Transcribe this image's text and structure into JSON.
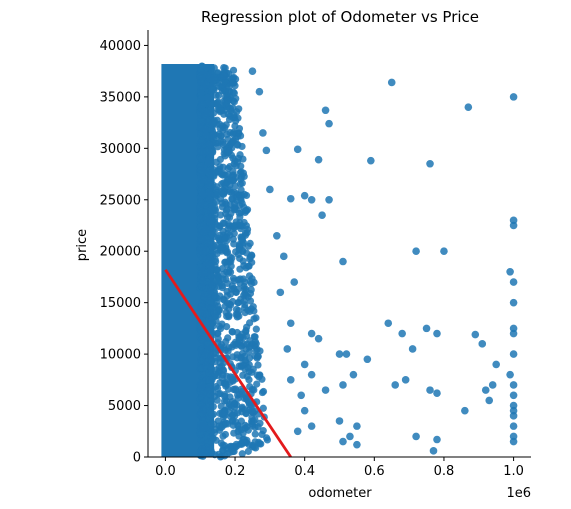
{
  "chart_data": {
    "type": "scatter",
    "title": "Regression plot of Odometer vs Price",
    "xlabel": "odometer",
    "ylabel": "price",
    "x_offset_label": "1e6",
    "xlim": [
      -0.05,
      1.05
    ],
    "ylim": [
      0,
      41500
    ],
    "xticks": [
      0.0,
      0.2,
      0.4,
      0.6,
      0.8,
      1.0
    ],
    "xtick_labels": [
      "0.0",
      "0.2",
      "0.4",
      "0.6",
      "0.8",
      "1.0"
    ],
    "yticks": [
      0,
      5000,
      10000,
      15000,
      20000,
      25000,
      30000,
      35000,
      40000
    ],
    "ytick_labels": [
      "0",
      "5000",
      "10000",
      "15000",
      "20000",
      "25000",
      "30000",
      "35000",
      "40000"
    ],
    "grid": false,
    "colors": {
      "points": "#1f77b4",
      "regression_line": "#e31a1c"
    },
    "dense_region": {
      "x": [
        0.0,
        0.3
      ],
      "y": [
        0,
        38000
      ]
    },
    "points": [
      {
        "x": 0.65,
        "y": 36400
      },
      {
        "x": 0.87,
        "y": 34000
      },
      {
        "x": 1.0,
        "y": 35000
      },
      {
        "x": 0.46,
        "y": 33700
      },
      {
        "x": 0.47,
        "y": 32400
      },
      {
        "x": 0.38,
        "y": 29900
      },
      {
        "x": 0.44,
        "y": 28900
      },
      {
        "x": 0.59,
        "y": 28800
      },
      {
        "x": 0.76,
        "y": 28500
      },
      {
        "x": 0.36,
        "y": 25100
      },
      {
        "x": 0.4,
        "y": 25400
      },
      {
        "x": 0.42,
        "y": 25000
      },
      {
        "x": 0.47,
        "y": 25000
      },
      {
        "x": 0.45,
        "y": 23500
      },
      {
        "x": 1.0,
        "y": 23000
      },
      {
        "x": 1.0,
        "y": 22500
      },
      {
        "x": 0.72,
        "y": 20000
      },
      {
        "x": 0.8,
        "y": 20000
      },
      {
        "x": 0.51,
        "y": 19000
      },
      {
        "x": 0.99,
        "y": 18000
      },
      {
        "x": 1.0,
        "y": 17000
      },
      {
        "x": 1.0,
        "y": 15000
      },
      {
        "x": 0.64,
        "y": 13000
      },
      {
        "x": 0.68,
        "y": 12000
      },
      {
        "x": 0.75,
        "y": 12500
      },
      {
        "x": 0.78,
        "y": 12000
      },
      {
        "x": 0.89,
        "y": 11900
      },
      {
        "x": 0.91,
        "y": 11000
      },
      {
        "x": 1.0,
        "y": 12500
      },
      {
        "x": 1.0,
        "y": 12000
      },
      {
        "x": 0.71,
        "y": 10500
      },
      {
        "x": 0.5,
        "y": 10000
      },
      {
        "x": 0.52,
        "y": 10000
      },
      {
        "x": 0.58,
        "y": 9500
      },
      {
        "x": 0.95,
        "y": 9000
      },
      {
        "x": 0.99,
        "y": 8000
      },
      {
        "x": 1.0,
        "y": 10000
      },
      {
        "x": 0.54,
        "y": 8000
      },
      {
        "x": 0.69,
        "y": 7500
      },
      {
        "x": 0.66,
        "y": 7000
      },
      {
        "x": 0.76,
        "y": 6500
      },
      {
        "x": 0.78,
        "y": 6200
      },
      {
        "x": 0.92,
        "y": 6500
      },
      {
        "x": 0.94,
        "y": 7000
      },
      {
        "x": 0.93,
        "y": 5500
      },
      {
        "x": 1.0,
        "y": 7000
      },
      {
        "x": 1.0,
        "y": 6000
      },
      {
        "x": 1.0,
        "y": 5000
      },
      {
        "x": 1.0,
        "y": 4500
      },
      {
        "x": 1.0,
        "y": 4000
      },
      {
        "x": 0.86,
        "y": 4500
      },
      {
        "x": 0.51,
        "y": 7000
      },
      {
        "x": 0.46,
        "y": 6500
      },
      {
        "x": 0.5,
        "y": 3500
      },
      {
        "x": 0.55,
        "y": 3000
      },
      {
        "x": 0.53,
        "y": 2000
      },
      {
        "x": 0.51,
        "y": 1500
      },
      {
        "x": 0.55,
        "y": 1200
      },
      {
        "x": 0.72,
        "y": 2000
      },
      {
        "x": 0.78,
        "y": 1700
      },
      {
        "x": 0.77,
        "y": 600
      },
      {
        "x": 1.0,
        "y": 3000
      },
      {
        "x": 1.0,
        "y": 2000
      },
      {
        "x": 1.0,
        "y": 1500
      },
      {
        "x": 0.42,
        "y": 12000
      },
      {
        "x": 0.44,
        "y": 11500
      },
      {
        "x": 0.4,
        "y": 9000
      },
      {
        "x": 0.42,
        "y": 8000
      },
      {
        "x": 0.39,
        "y": 6000
      },
      {
        "x": 0.4,
        "y": 4500
      },
      {
        "x": 0.38,
        "y": 2500
      },
      {
        "x": 0.42,
        "y": 3000
      },
      {
        "x": 0.36,
        "y": 13000
      },
      {
        "x": 0.37,
        "y": 17000
      },
      {
        "x": 0.34,
        "y": 19500
      },
      {
        "x": 0.32,
        "y": 21500
      },
      {
        "x": 0.3,
        "y": 26000
      },
      {
        "x": 0.29,
        "y": 29800
      },
      {
        "x": 0.28,
        "y": 31500
      },
      {
        "x": 0.27,
        "y": 35500
      },
      {
        "x": 0.25,
        "y": 37500
      },
      {
        "x": 0.33,
        "y": 16000
      },
      {
        "x": 0.35,
        "y": 10500
      },
      {
        "x": 0.36,
        "y": 7500
      }
    ],
    "regression_line": {
      "x": [
        0.0,
        0.36
      ],
      "y": [
        18200,
        0
      ]
    }
  }
}
